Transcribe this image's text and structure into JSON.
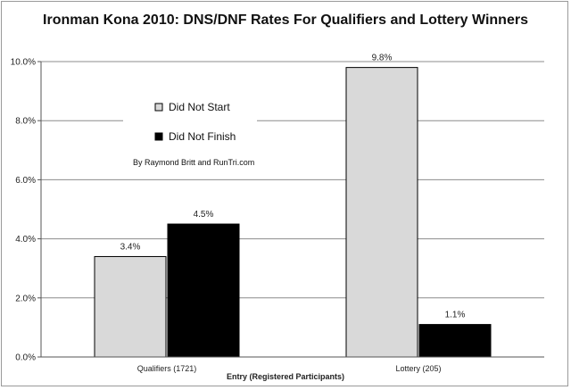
{
  "chart_data": {
    "type": "bar",
    "title": "Ironman Kona 2010: DNS/DNF Rates For Qualifiers and Lottery Winners",
    "xlabel": "Entry (Registered Participants)",
    "ylabel": "",
    "categories": [
      "Qualifiers (1721)",
      "Lottery (205)"
    ],
    "series": [
      {
        "name": "Did Not Start",
        "values": [
          3.4,
          9.8
        ],
        "labels": [
          "3.4%",
          "9.8%"
        ],
        "color": "#d9d9d9"
      },
      {
        "name": "Did Not Finish",
        "values": [
          4.5,
          1.1
        ],
        "labels": [
          "4.5%",
          "1.1%"
        ],
        "color": "#000000"
      }
    ],
    "ylim": [
      0,
      10
    ],
    "yticks": [
      0,
      2,
      4,
      6,
      8,
      10
    ],
    "ytick_labels": [
      "0.0%",
      "2.0%",
      "4.0%",
      "6.0%",
      "8.0%",
      "10.0%"
    ],
    "grid": true,
    "legend_position": "upper-left inside plot",
    "annotation": "By Raymond Britt and RunTri.com"
  }
}
